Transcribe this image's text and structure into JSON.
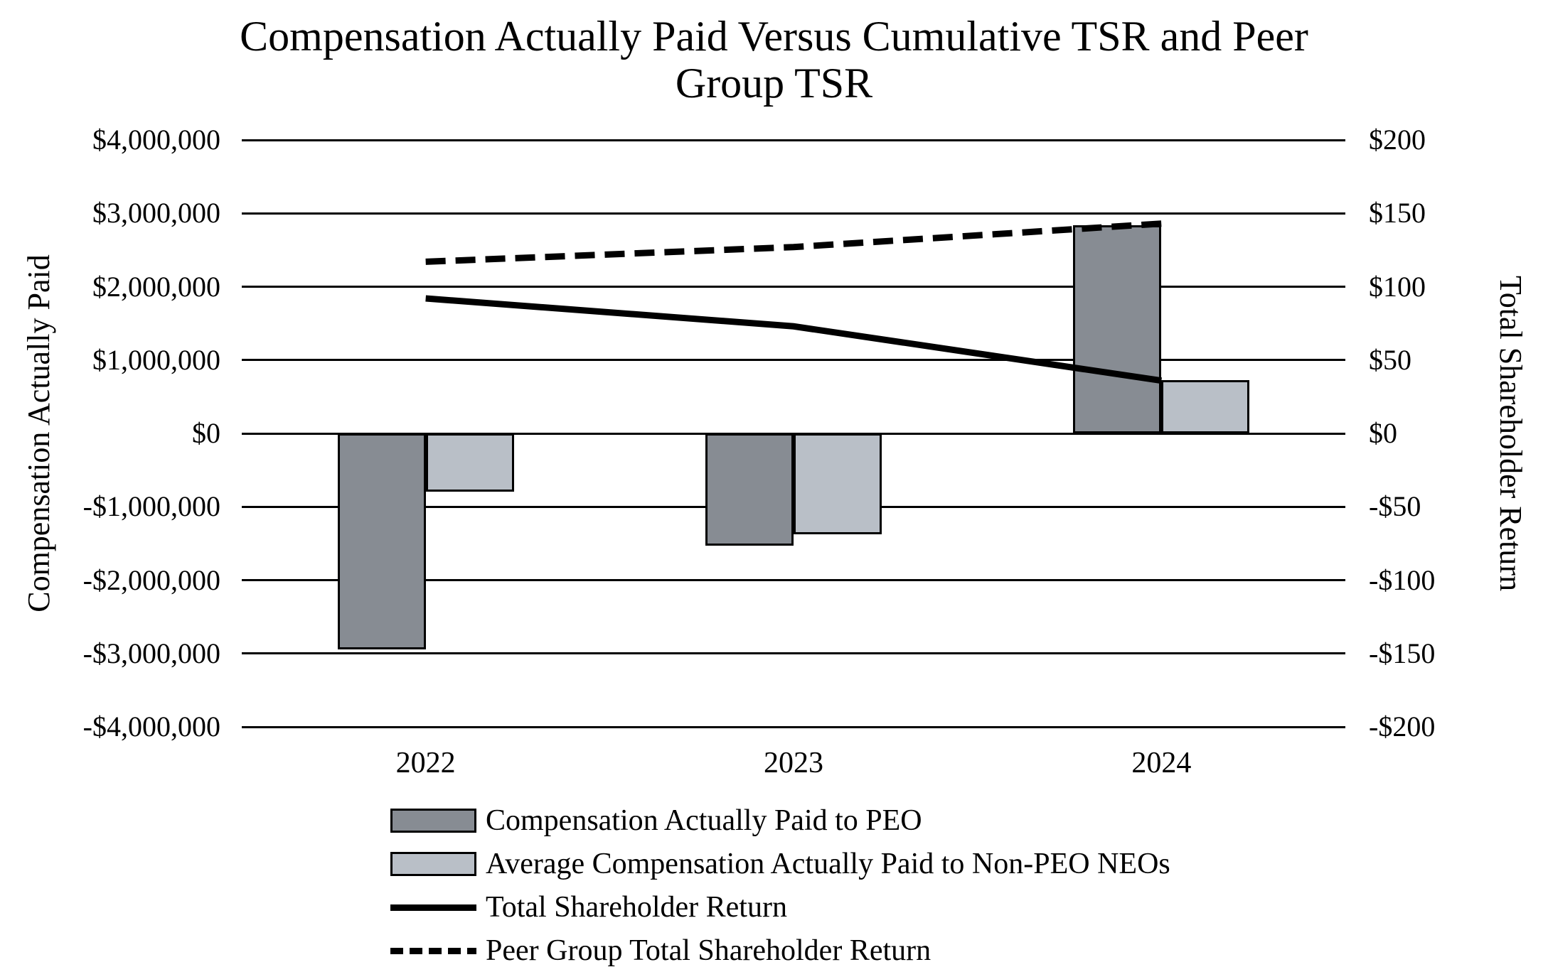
{
  "chart_data": {
    "type": "combo-bar-line",
    "title": "Compensation Actually Paid Versus Cumulative TSR and Peer Group TSR",
    "title_lines": [
      "Compensation Actually Paid Versus Cumulative TSR and Peer",
      "Group TSR"
    ],
    "categories": [
      "2022",
      "2023",
      "2024"
    ],
    "bar_series": [
      {
        "name": "Compensation Actually Paid to PEO",
        "axis": "left",
        "color": "#878C93",
        "values": [
          -2940000,
          -1530000,
          2840000
        ]
      },
      {
        "name": "Average Compensation Actually Paid to Non-PEO NEOs",
        "axis": "left",
        "color": "#B9BFC7",
        "values": [
          -790000,
          -1380000,
          730000
        ]
      }
    ],
    "line_series": [
      {
        "name": "Total Shareholder Return",
        "axis": "right",
        "style": "solid",
        "color": "#000000",
        "values": [
          92,
          73,
          36
        ]
      },
      {
        "name": "Peer Group Total Shareholder Return",
        "axis": "right",
        "style": "dashed",
        "color": "#000000",
        "values": [
          117,
          127,
          143
        ]
      }
    ],
    "left_axis": {
      "title": "Compensation Actually Paid",
      "min": -4000000,
      "max": 4000000,
      "tick_step": 1000000,
      "tick_labels": [
        "$4,000,000",
        "$3,000,000",
        "$2,000,000",
        "$1,000,000",
        "$0",
        "-$1,000,000",
        "-$2,000,000",
        "-$3,000,000",
        "-$4,000,000"
      ]
    },
    "right_axis": {
      "title": "Total Shareholder Return",
      "min": -200,
      "max": 200,
      "tick_step": 50,
      "tick_labels": [
        "$200",
        "$150",
        "$100",
        "$50",
        "$0",
        "-$50",
        "-$100",
        "-$150",
        "-$200"
      ]
    },
    "grid": true,
    "legend_position": "bottom-left"
  }
}
